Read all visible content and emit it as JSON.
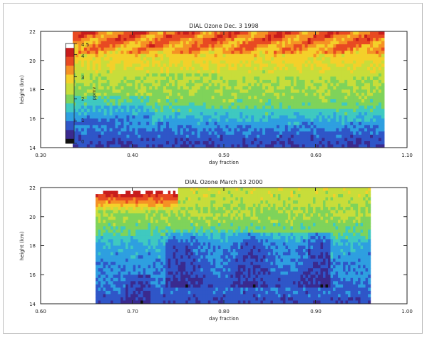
{
  "chart_data": [
    {
      "type": "heatmap",
      "title": "DIAL Ozone Dec. 3 1998",
      "xlabel": "day fraction",
      "ylabel": "height (km)",
      "xlim": [
        0.3,
        1.1
      ],
      "ylim": [
        14,
        22
      ],
      "xticks": [
        "0.30",
        "0.40",
        "0.50",
        "0.60",
        "1.10"
      ],
      "yticks": [
        "14",
        "16",
        "18",
        "20",
        "22"
      ],
      "data_x_extent": [
        0.37,
        1.05
      ],
      "colorbar": {
        "label": "ppmv",
        "ticks": [
          "0",
          "1",
          "2",
          "3",
          "4",
          "4.5"
        ],
        "range": [
          0,
          4.5
        ]
      },
      "profile": {
        "heights": [
          14,
          15,
          16,
          17,
          18,
          19,
          20,
          21,
          22
        ],
        "typical_ppmv": [
          0.6,
          0.9,
          1.4,
          2.0,
          2.2,
          2.4,
          2.8,
          3.0,
          3.3
        ]
      }
    },
    {
      "type": "heatmap",
      "title": "DIAL Ozone March 13 2000",
      "xlabel": "day fraction",
      "ylabel": "height (km)",
      "xlim": [
        0.6,
        1.0
      ],
      "ylim": [
        14,
        22
      ],
      "xticks": [
        "0.60",
        "0.70",
        "0.80",
        "0.90",
        "1.00"
      ],
      "yticks": [
        "14",
        "16",
        "18",
        "20",
        "22"
      ],
      "data_x_extent": [
        0.66,
        0.96
      ],
      "profile": {
        "heights": [
          14,
          15,
          16,
          17,
          18,
          19,
          20,
          21,
          22
        ],
        "typical_ppmv": [
          0.7,
          0.9,
          1.1,
          1.2,
          1.3,
          1.9,
          2.2,
          2.4,
          2.5
        ]
      }
    }
  ],
  "colormap": [
    "#101010",
    "#3a2a8f",
    "#2f56c8",
    "#2e9fe0",
    "#3fc9c0",
    "#7fd35a",
    "#c8dd3a",
    "#f4d02a",
    "#f59224",
    "#e84a22",
    "#c81c1c",
    "#ffffff"
  ]
}
